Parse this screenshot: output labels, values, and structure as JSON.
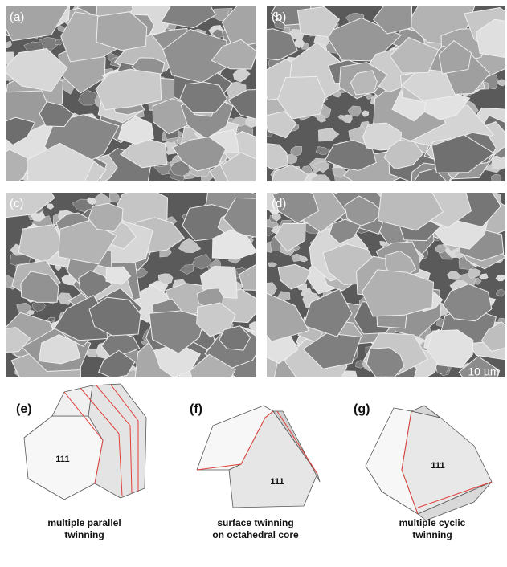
{
  "panels": [
    {
      "label": "(a)"
    },
    {
      "label": "(b)"
    },
    {
      "label": "(c)"
    },
    {
      "label": "(d)"
    }
  ],
  "scale_bar": "10 µm",
  "diagrams": [
    {
      "label": "(e)",
      "face": "111",
      "caption": [
        "multiple parallel",
        "twinning"
      ]
    },
    {
      "label": "(f)",
      "face": "111",
      "caption": [
        "surface twinning",
        "on octahedral core"
      ]
    },
    {
      "label": "(g)",
      "face": "111",
      "caption": [
        "multiple cyclic",
        "twinning"
      ]
    }
  ]
}
